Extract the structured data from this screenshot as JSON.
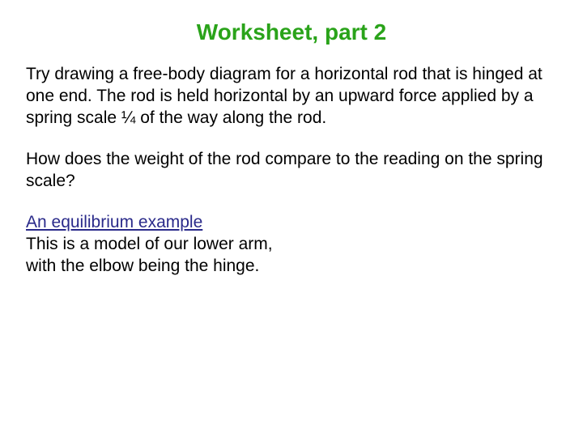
{
  "title": {
    "text": "Worksheet, part 2",
    "color": "#2aa31a",
    "fontsize": 28
  },
  "body": {
    "color": "#000000",
    "fontsize": 21,
    "lineheight": 27
  },
  "paragraphs": {
    "p1": "Try drawing a free-body diagram for a horizontal rod that is hinged at one end. The rod is held horizontal by an upward force applied by a spring scale ¼ of the way along the rod.",
    "p2": "How does the weight of the rod compare to the reading on the spring scale?",
    "link": "An equilibrium example",
    "p3a": "This is a model of our lower arm,",
    "p3b": "with the elbow being the hinge.",
    "link_color": "#2a2a8a"
  }
}
